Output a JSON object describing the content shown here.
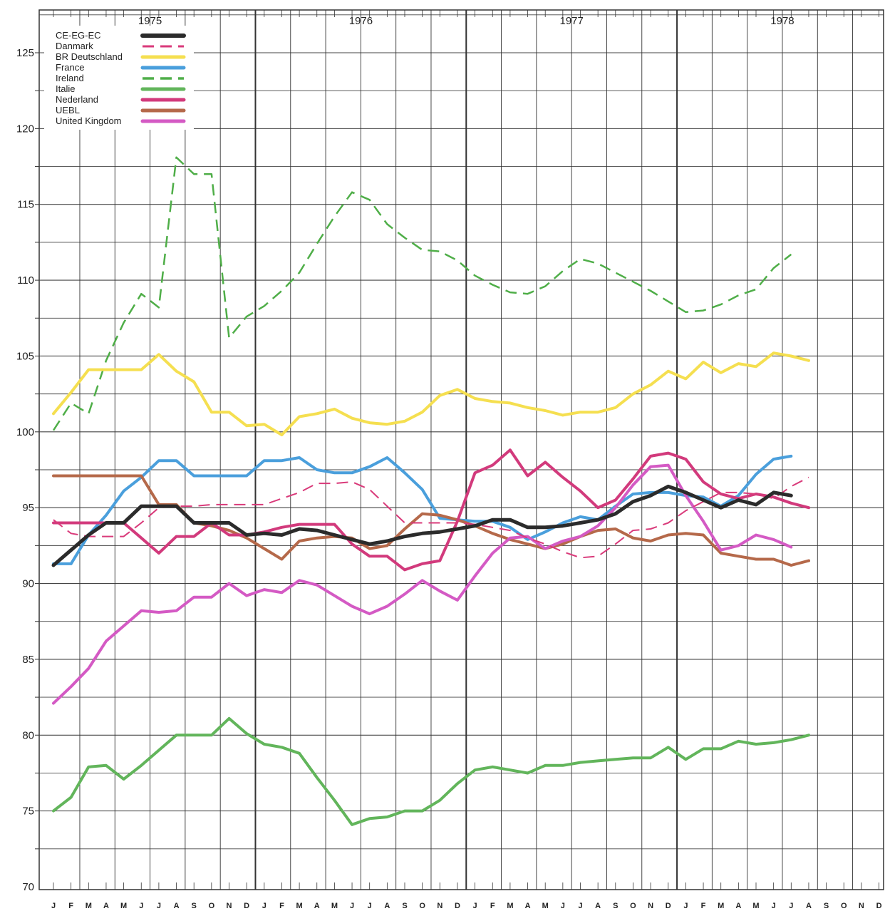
{
  "chart_data": {
    "type": "line",
    "title": "",
    "xlabel": "",
    "ylabel": "",
    "ylim": [
      70,
      127
    ],
    "yticks": [
      70,
      75,
      80,
      85,
      90,
      95,
      100,
      105,
      110,
      115,
      120,
      125
    ],
    "years": [
      "1975",
      "1976",
      "1977",
      "1978"
    ],
    "month_labels": [
      "J",
      "F",
      "M",
      "A",
      "M",
      "J",
      "J",
      "A",
      "S",
      "O",
      "N",
      "D",
      "J",
      "F",
      "M",
      "A",
      "M",
      "J",
      "J",
      "A",
      "S",
      "O",
      "N",
      "D",
      "J",
      "F",
      "M",
      "A",
      "M",
      "J",
      "J",
      "A",
      "S",
      "O",
      "N",
      "D",
      "J",
      "F",
      "M",
      "A",
      "M",
      "J",
      "J",
      "A",
      "S",
      "O",
      "N",
      "D"
    ],
    "grid": true,
    "legend_position": "top-left",
    "series": [
      {
        "name": "CE-EG-EC",
        "color": "#2b2b2b",
        "dash": "solid",
        "width": 5,
        "values": [
          91.2,
          92.2,
          93.2,
          94.0,
          94.0,
          95.1,
          95.1,
          95.1,
          94.0,
          94.0,
          94.0,
          93.2,
          93.3,
          93.2,
          93.6,
          93.5,
          93.2,
          92.9,
          92.6,
          92.8,
          93.1,
          93.3,
          93.4,
          93.6,
          93.8,
          94.2,
          94.2,
          93.7,
          93.7,
          93.8,
          94.0,
          94.2,
          94.6,
          95.4,
          95.8,
          96.4,
          96.0,
          95.5,
          95.0,
          95.5,
          95.2,
          96.0,
          95.8,
          null,
          null,
          null,
          null,
          null
        ]
      },
      {
        "name": "Danmark",
        "color": "#d93a7a",
        "dash": "dash",
        "width": 2,
        "values": [
          94.2,
          93.3,
          93.1,
          93.1,
          93.1,
          94.0,
          95.0,
          95.1,
          95.1,
          95.2,
          95.2,
          95.2,
          95.2,
          95.6,
          96.0,
          96.6,
          96.6,
          96.7,
          96.2,
          95.1,
          94.0,
          94.0,
          94.0,
          94.0,
          93.9,
          93.7,
          93.5,
          93.0,
          92.6,
          92.1,
          91.7,
          91.8,
          92.6,
          93.5,
          93.6,
          94.0,
          94.8,
          95.4,
          96.0,
          96.0,
          95.9,
          95.6,
          96.4,
          97.0,
          null,
          null,
          null,
          null
        ]
      },
      {
        "name": "BR Deutschland",
        "color": "#f5df50",
        "dash": "solid",
        "width": 4,
        "values": [
          101.2,
          102.6,
          104.1,
          104.1,
          104.1,
          104.1,
          105.1,
          104.0,
          103.3,
          101.3,
          101.3,
          100.4,
          100.5,
          99.8,
          101.0,
          101.2,
          101.5,
          100.9,
          100.6,
          100.5,
          100.7,
          101.3,
          102.4,
          102.8,
          102.2,
          102.0,
          101.9,
          101.6,
          101.4,
          101.1,
          101.3,
          101.3,
          101.6,
          102.5,
          103.1,
          104.0,
          103.5,
          104.6,
          103.9,
          104.5,
          104.3,
          105.2,
          105.0,
          104.7,
          null,
          null,
          null,
          null
        ]
      },
      {
        "name": "France",
        "color": "#4a9fdc",
        "dash": "solid",
        "width": 4,
        "values": [
          91.3,
          91.3,
          93.2,
          94.5,
          96.1,
          97.0,
          98.1,
          98.1,
          97.1,
          97.1,
          97.1,
          97.1,
          98.1,
          98.1,
          98.3,
          97.5,
          97.3,
          97.3,
          97.7,
          98.3,
          97.3,
          96.2,
          94.3,
          94.2,
          94.1,
          94.1,
          93.7,
          92.9,
          93.4,
          94.0,
          94.4,
          94.2,
          95.1,
          95.9,
          96.0,
          96.0,
          95.8,
          95.7,
          95.1,
          95.8,
          97.2,
          98.2,
          98.4,
          null,
          null,
          null,
          null,
          null
        ]
      },
      {
        "name": "Ireland",
        "color": "#4fae48",
        "dash": "dash",
        "width": 2.5,
        "values": [
          100.1,
          101.9,
          101.2,
          104.7,
          107.2,
          109.1,
          108.2,
          118.1,
          117.0,
          117.0,
          106.2,
          107.6,
          108.3,
          109.3,
          110.5,
          112.4,
          114.2,
          115.8,
          115.3,
          113.7,
          112.8,
          112.0,
          111.9,
          111.3,
          110.3,
          109.7,
          109.2,
          109.1,
          109.6,
          110.6,
          111.4,
          111.1,
          110.5,
          109.9,
          109.3,
          108.6,
          107.9,
          108.0,
          108.4,
          109.0,
          109.4,
          110.8,
          111.7,
          null,
          null,
          null,
          null,
          null
        ]
      },
      {
        "name": "Italie",
        "color": "#62b55b",
        "dash": "solid",
        "width": 4,
        "values": [
          75.0,
          75.9,
          77.9,
          78.0,
          77.1,
          78.0,
          79.0,
          80.0,
          80.0,
          80.0,
          81.1,
          80.1,
          79.4,
          79.2,
          78.8,
          77.2,
          75.7,
          74.1,
          74.5,
          74.6,
          75.0,
          75.0,
          75.7,
          76.8,
          77.7,
          77.9,
          77.7,
          77.5,
          78.0,
          78.0,
          78.2,
          78.3,
          78.4,
          78.5,
          78.5,
          79.2,
          78.4,
          79.1,
          79.1,
          79.6,
          79.4,
          79.5,
          79.7,
          80.0,
          null,
          null,
          null,
          null
        ]
      },
      {
        "name": "Nederland",
        "color": "#d23a7c",
        "dash": "solid",
        "width": 4,
        "values": [
          94.0,
          94.0,
          94.0,
          94.0,
          94.0,
          93.0,
          92.0,
          93.1,
          93.1,
          94.0,
          93.2,
          93.2,
          93.4,
          93.7,
          93.9,
          93.9,
          93.9,
          92.6,
          91.8,
          91.8,
          90.9,
          91.3,
          91.5,
          94.1,
          97.3,
          97.8,
          98.8,
          97.1,
          98.0,
          97.0,
          96.1,
          95.0,
          95.5,
          96.9,
          98.4,
          98.6,
          98.2,
          96.7,
          95.9,
          95.6,
          95.9,
          95.7,
          95.3,
          95.0,
          null,
          null,
          null,
          null
        ]
      },
      {
        "name": "UEBL",
        "color": "#b5694a",
        "dash": "solid",
        "width": 4,
        "values": [
          97.1,
          97.1,
          97.1,
          97.1,
          97.1,
          97.1,
          95.2,
          95.2,
          94.0,
          93.8,
          93.5,
          93.0,
          92.3,
          91.6,
          92.8,
          93.0,
          93.1,
          93.0,
          92.3,
          92.5,
          93.6,
          94.6,
          94.5,
          94.2,
          93.8,
          93.3,
          92.9,
          92.6,
          92.3,
          92.6,
          93.1,
          93.5,
          93.6,
          93.0,
          92.8,
          93.2,
          93.3,
          93.2,
          92.0,
          91.8,
          91.6,
          91.6,
          91.2,
          91.5,
          null,
          null,
          null,
          null
        ]
      },
      {
        "name": "United Kingdom",
        "color": "#d45ac4",
        "dash": "solid",
        "width": 4,
        "values": [
          82.1,
          83.2,
          84.4,
          86.2,
          87.2,
          88.2,
          88.1,
          88.2,
          89.1,
          89.1,
          90.0,
          89.2,
          89.6,
          89.4,
          90.2,
          89.9,
          89.2,
          88.5,
          88.0,
          88.5,
          89.3,
          90.2,
          89.5,
          88.9,
          90.5,
          92.0,
          93.0,
          93.1,
          92.3,
          92.8,
          93.1,
          93.8,
          95.0,
          96.5,
          97.7,
          97.8,
          95.8,
          94.1,
          92.2,
          92.5,
          93.2,
          92.9,
          92.4,
          null,
          null,
          null,
          null,
          null
        ]
      }
    ]
  }
}
